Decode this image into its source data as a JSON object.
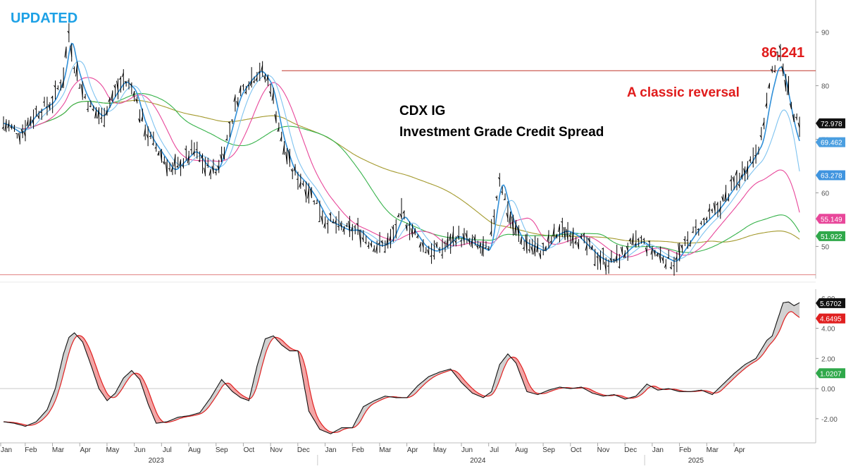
{
  "header": {
    "badge": "UPDATED"
  },
  "annotations": {
    "title_line1": "CDX IG",
    "title_line2": "Investment Grade Credit Spread",
    "reversal": "A classic reversal",
    "peak_value": "86.241"
  },
  "colors": {
    "price": "#000000",
    "ma_fast": "#2f8fd8",
    "ma_slow_blue": "#7ec3f0",
    "ma_pink": "#e8479a",
    "ma_green": "#36b24a",
    "ma_olive": "#a49a2e",
    "badge": "#1da1e6",
    "annotation_red": "#e01b1b",
    "osc_line": "#111111",
    "osc_signal": "#e02020",
    "osc_fill_up": "#cfcfcf",
    "osc_fill_down": "#f2a0a0"
  },
  "chart_data": [
    {
      "type": "line",
      "panel": "price",
      "ylim": [
        44,
        96
      ],
      "yticks": [
        50,
        60,
        70,
        80,
        90
      ],
      "reference_lines": [
        82.8,
        44.7
      ],
      "series": [
        {
          "role": "close",
          "x": [
            0,
            3,
            6,
            9,
            11,
            12,
            13,
            14.5,
            16,
            18,
            20,
            22,
            24,
            25,
            26,
            27,
            29,
            31,
            33,
            35,
            37,
            39,
            41,
            43,
            45,
            47,
            49,
            51,
            53,
            55,
            57,
            59,
            61,
            63,
            65,
            67,
            69,
            71,
            73,
            75,
            77,
            79,
            81,
            83,
            85,
            87,
            89,
            91,
            93,
            95,
            97,
            99,
            101,
            103,
            105,
            107,
            109,
            111,
            113,
            115,
            117,
            119,
            121,
            123,
            125,
            127,
            129,
            131,
            133,
            135,
            137,
            139,
            140,
            141,
            142,
            143,
            144,
            145,
            146
          ],
          "values": [
            73,
            71,
            75,
            77,
            82,
            90,
            84,
            79,
            76,
            74,
            78,
            81,
            79,
            75,
            72,
            70,
            67,
            64,
            66,
            68,
            65,
            64,
            70,
            78,
            81,
            83,
            80,
            70,
            64,
            62,
            59,
            55,
            54,
            53,
            53,
            51,
            50,
            51,
            56,
            53,
            50,
            49,
            50,
            52,
            51,
            50,
            49,
            63,
            55,
            51,
            50,
            49,
            52,
            53,
            52,
            50,
            48,
            47,
            48,
            50,
            51,
            49,
            48,
            47,
            50,
            53,
            55,
            57,
            60,
            63,
            66,
            70,
            77,
            82,
            86.2,
            84,
            79,
            75,
            73
          ]
        },
        {
          "role": "ma_fast",
          "last": "69.462",
          "label_bg": "#4a9ee0"
        },
        {
          "role": "ma_slow_blue",
          "last": "63.278",
          "label_bg": "#3f94df"
        },
        {
          "role": "ma_pink",
          "last": "55.149",
          "label_bg": "#e8479a"
        },
        {
          "role": "ma_green",
          "last": "51.922",
          "label_bg": "#2fa84a"
        },
        {
          "role": "close_tag",
          "last": "72.978",
          "label_bg": "#111111"
        }
      ]
    },
    {
      "type": "line",
      "panel": "oscillator",
      "ylim": [
        -3.6,
        6.6
      ],
      "yticks": [
        "4.00",
        "2.00",
        "0.00",
        "-2.00"
      ],
      "top_partial_tick": "6.00",
      "series": [
        {
          "role": "oscillator",
          "last": "5.6702",
          "label_bg": "#111111",
          "x": [
            0,
            2,
            4,
            6,
            8,
            9.5,
            11,
            12,
            13,
            14.5,
            16,
            17.5,
            19,
            20.5,
            22,
            23.5,
            25,
            26.5,
            28,
            30,
            32,
            34,
            36,
            38,
            40,
            42,
            43.5,
            45,
            46.5,
            48,
            49.5,
            51,
            52.5,
            54,
            56,
            58,
            60,
            62,
            64,
            66,
            68,
            70,
            72,
            74,
            76,
            78,
            80,
            82,
            84,
            86,
            88,
            89.5,
            91,
            92.5,
            94,
            96,
            98,
            100,
            102,
            104,
            106,
            108,
            110,
            112,
            114,
            116,
            118,
            120,
            122,
            124,
            126,
            128,
            130,
            132,
            134,
            136,
            138,
            140,
            141,
            142,
            143,
            144,
            145,
            146
          ],
          "values": [
            -2.2,
            -2.3,
            -2.5,
            -2.2,
            -1.4,
            0,
            2.3,
            3.4,
            3.7,
            3.1,
            1.6,
            0,
            -0.8,
            -0.3,
            0.7,
            1.2,
            0.6,
            -1,
            -2.3,
            -2.2,
            -1.9,
            -1.8,
            -1.6,
            -0.6,
            0.6,
            -0.2,
            -0.6,
            -0.8,
            1.5,
            3.3,
            3.5,
            2.9,
            2.5,
            2.5,
            -1.5,
            -2.7,
            -3,
            -2.6,
            -2.6,
            -1.2,
            -0.8,
            -0.5,
            -0.6,
            -0.6,
            0.2,
            0.8,
            1.1,
            1.3,
            0.4,
            -0.3,
            -0.6,
            -0.2,
            1.6,
            2.3,
            1.7,
            -0.2,
            -0.4,
            -0.1,
            0.1,
            0.0,
            0.1,
            -0.3,
            -0.5,
            -0.4,
            -0.7,
            -0.5,
            0.3,
            -0.1,
            0.0,
            -0.2,
            -0.2,
            -0.1,
            -0.4,
            0.3,
            1.0,
            1.6,
            2.0,
            3.2,
            3.5,
            4.6,
            5.7,
            5.75,
            5.5,
            5.7
          ]
        },
        {
          "role": "signal",
          "last": "4.6495",
          "label_bg": "#e02020"
        },
        {
          "role": "histogram_marker",
          "last": "1.0207",
          "label_bg": "#2fa84a"
        }
      ]
    }
  ],
  "x_axis": {
    "months": [
      {
        "x": 0,
        "label": "Jan"
      },
      {
        "x": 4.5,
        "label": "Feb"
      },
      {
        "x": 9.5,
        "label": "Mar"
      },
      {
        "x": 14.5,
        "label": "Apr"
      },
      {
        "x": 19.5,
        "label": "May"
      },
      {
        "x": 24.5,
        "label": "Jun"
      },
      {
        "x": 29.5,
        "label": "Jul"
      },
      {
        "x": 34.5,
        "label": "Aug"
      },
      {
        "x": 39.5,
        "label": "Sep"
      },
      {
        "x": 44.5,
        "label": "Oct"
      },
      {
        "x": 49.5,
        "label": "Nov"
      },
      {
        "x": 54.5,
        "label": "Dec"
      },
      {
        "x": 59.5,
        "label": "Jan"
      },
      {
        "x": 64.5,
        "label": "Feb"
      },
      {
        "x": 69.5,
        "label": "Mar"
      },
      {
        "x": 74.5,
        "label": "Apr"
      },
      {
        "x": 79.5,
        "label": "May"
      },
      {
        "x": 84.5,
        "label": "Jun"
      },
      {
        "x": 89.5,
        "label": "Jul"
      },
      {
        "x": 94.5,
        "label": "Aug"
      },
      {
        "x": 99.5,
        "label": "Sep"
      },
      {
        "x": 104.5,
        "label": "Oct"
      },
      {
        "x": 109.5,
        "label": "Nov"
      },
      {
        "x": 114.5,
        "label": "Dec"
      },
      {
        "x": 119.5,
        "label": "Jan"
      },
      {
        "x": 124.5,
        "label": "Feb"
      },
      {
        "x": 129.5,
        "label": "Mar"
      },
      {
        "x": 134.5,
        "label": "Apr"
      }
    ],
    "years": [
      {
        "x": 28,
        "label": "2023"
      },
      {
        "x": 87,
        "label": "2024"
      },
      {
        "x": 127,
        "label": "2025"
      }
    ]
  }
}
